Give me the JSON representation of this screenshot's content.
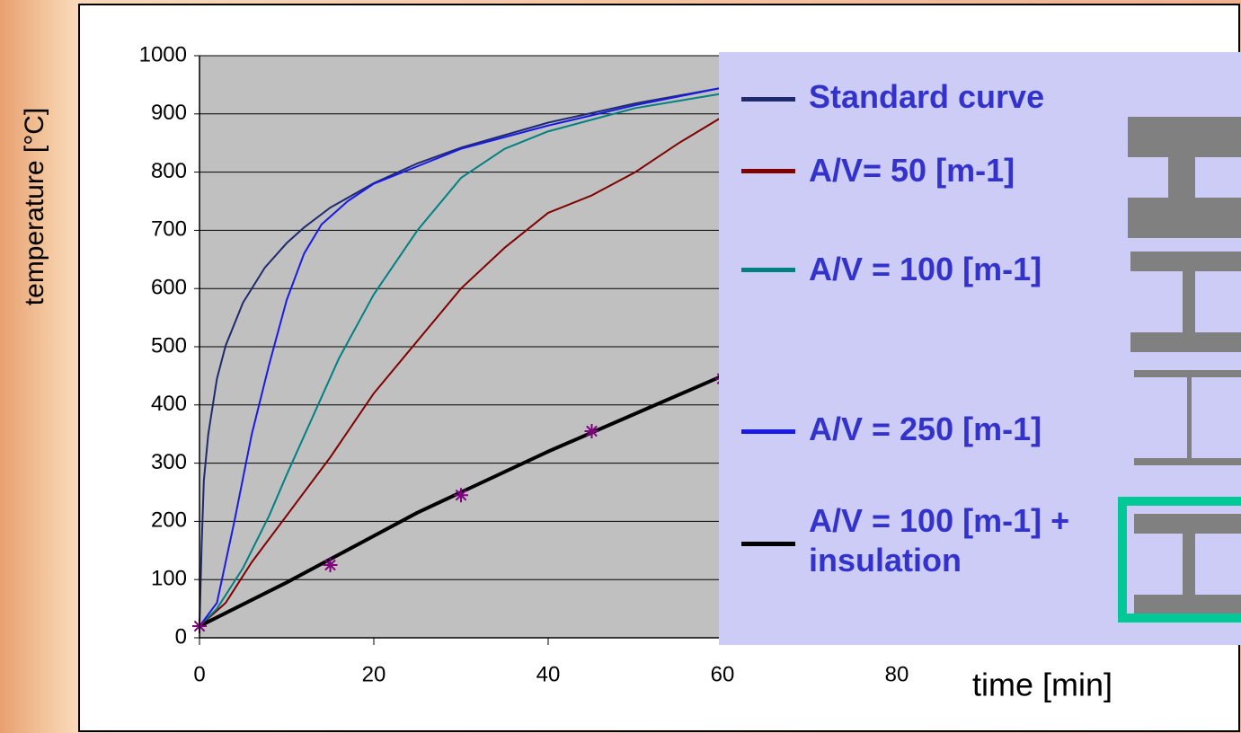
{
  "chart_data": {
    "type": "line",
    "y_label": "temperature [°C]",
    "x_label": "time [min]",
    "xlim": [
      0,
      100
    ],
    "xticks": [
      0,
      20,
      40,
      60,
      80
    ],
    "ylim": [
      0,
      1000
    ],
    "yticks": [
      0,
      100,
      200,
      300,
      400,
      500,
      600,
      700,
      800,
      900,
      1000
    ],
    "grid": true,
    "series": [
      {
        "name": "Standard curve",
        "color": "#1f2a6e",
        "width": 2,
        "x": [
          0,
          0.25,
          0.5,
          1,
          2,
          3,
          5,
          7.5,
          10,
          12,
          15,
          20,
          25,
          30,
          40,
          50,
          60
        ],
        "values": [
          20,
          160,
          270,
          349,
          445,
          502,
          576,
          636,
          678,
          705,
          739,
          781,
          815,
          842,
          885,
          918,
          945
        ]
      },
      {
        "name": "A/V= 50 [m-1]",
        "color": "#800000",
        "width": 2,
        "x": [
          0,
          3,
          6,
          10,
          15,
          20,
          25,
          30,
          35,
          40,
          45,
          50,
          55,
          60
        ],
        "values": [
          20,
          60,
          130,
          210,
          310,
          420,
          510,
          600,
          670,
          730,
          760,
          800,
          850,
          895
        ]
      },
      {
        "name": "A/V = 100 [m-1]",
        "color": "#008080",
        "width": 2,
        "x": [
          0,
          2,
          5,
          8,
          10,
          13,
          16,
          20,
          25,
          30,
          35,
          40,
          50,
          60
        ],
        "values": [
          20,
          50,
          120,
          210,
          280,
          380,
          480,
          590,
          700,
          790,
          840,
          870,
          910,
          935
        ]
      },
      {
        "name": "A/V = 250 [m-1]",
        "color": "#1a1ae6",
        "width": 2,
        "x": [
          0,
          2,
          4,
          6,
          8,
          10,
          12,
          14,
          17,
          20,
          25,
          30,
          40,
          50,
          60
        ],
        "values": [
          20,
          60,
          200,
          350,
          470,
          580,
          660,
          710,
          750,
          780,
          810,
          840,
          880,
          915,
          945
        ]
      },
      {
        "name": "A/V = 100 [m-1] + insulation",
        "color": "#000000",
        "width": 4,
        "x": [
          0,
          10,
          15,
          20,
          25,
          30,
          40,
          50,
          60
        ],
        "values": [
          20,
          95,
          135,
          175,
          215,
          250,
          320,
          385,
          450
        ]
      }
    ],
    "markers": {
      "color": "#800080",
      "x": [
        0,
        15,
        30,
        45,
        60
      ],
      "values": [
        20,
        125,
        245,
        355,
        445
      ]
    }
  }
}
